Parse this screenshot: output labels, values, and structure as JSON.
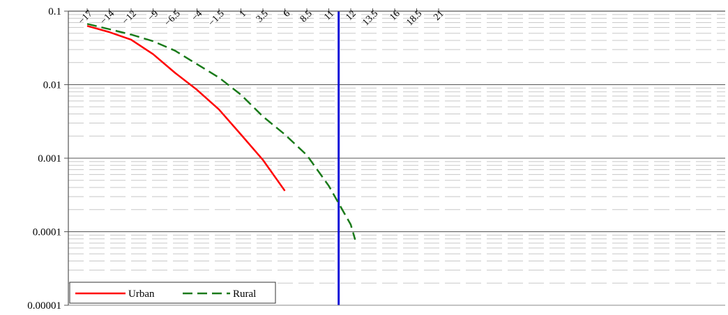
{
  "chart_data": {
    "type": "line",
    "title": "",
    "xlabel": "",
    "ylabel": "",
    "y_scale": "log",
    "ylim": [
      1e-05,
      0.1
    ],
    "y_ticks": [
      "0.1",
      "0.01",
      "0.001",
      "0.0001",
      "0.00001"
    ],
    "x_tick_labels": [
      "−17",
      "−14",
      "−12",
      "−9",
      "−6.5",
      "−4",
      "−1.5",
      "1",
      "3.5",
      "6",
      "8.5",
      "11",
      "12",
      "13.5",
      "16",
      "18.5",
      "21"
    ],
    "grid": true,
    "legend_position": "bottom-left",
    "series": [
      {
        "name": "Urban",
        "color": "#ff0000",
        "dash": "solid",
        "points": [
          [
            "−17",
            0.063
          ],
          [
            "−14",
            0.052
          ],
          [
            "−12",
            0.041
          ],
          [
            "−9",
            0.026
          ],
          [
            "−6.5",
            0.0145
          ],
          [
            "−4",
            0.0085
          ],
          [
            "−1.5",
            0.0046
          ],
          [
            "1",
            0.0021
          ],
          [
            "3.5",
            0.00095
          ],
          [
            "6",
            0.00036
          ]
        ]
      },
      {
        "name": "Rural",
        "color": "#1a7a1a",
        "dash": "dashed",
        "points": [
          [
            "−17",
            0.067
          ],
          [
            "−14",
            0.057
          ],
          [
            "−12",
            0.048
          ],
          [
            "−9",
            0.039
          ],
          [
            "−6.5",
            0.029
          ],
          [
            "−4",
            0.019
          ],
          [
            "−1.5",
            0.0125
          ],
          [
            "1",
            0.0073
          ],
          [
            "3.5",
            0.0037
          ],
          [
            "6",
            0.0021
          ],
          [
            "8.5",
            0.0011
          ],
          [
            "11",
            0.00042
          ],
          [
            "12",
            0.000125
          ],
          [
            "12.3",
            7.8e-05
          ]
        ]
      }
    ],
    "reference_line": {
      "x": 11.45,
      "color": "#1010d8"
    }
  }
}
